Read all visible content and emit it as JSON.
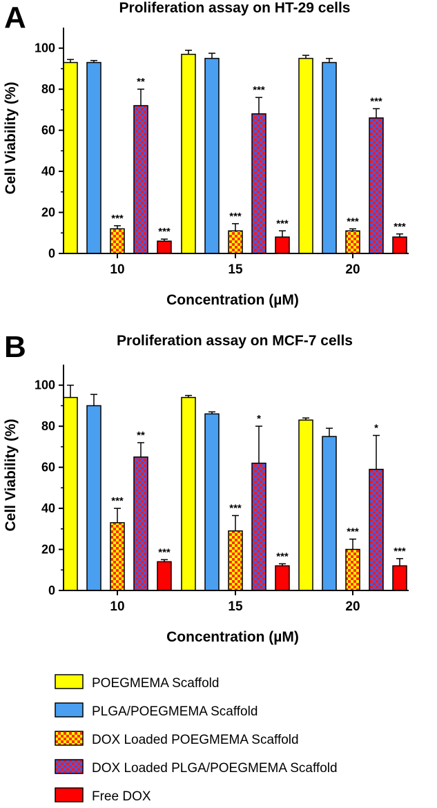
{
  "legend": [
    {
      "label": "POEGMEMA Scaffold",
      "pattern": "solid-yellow"
    },
    {
      "label": "PLGA/POEGMEMA Scaffold",
      "pattern": "solid-blue"
    },
    {
      "label": "DOX Loaded POEGMEMA Scaffold",
      "pattern": "check-red-yellow"
    },
    {
      "label": "DOX Loaded PLGA/POEGMEMA Scaffold",
      "pattern": "check-red-blue"
    },
    {
      "label": "Free DOX",
      "pattern": "solid-red"
    }
  ],
  "colors": {
    "yellow": "#ffff00",
    "blue": "#4a9ff0",
    "red": "#ff0000",
    "checker_blue": "#3a5ef0",
    "axis": "#000000"
  },
  "chart_data": [
    {
      "panel": "A",
      "type": "bar",
      "title": "Proliferation assay on HT-29 cells",
      "xlabel": "Concentration (µM)",
      "ylabel": "Cell Viability (%)",
      "ylim": [
        0,
        110
      ],
      "yticks": [
        0,
        20,
        40,
        60,
        80,
        100
      ],
      "categories": [
        "10",
        "15",
        "20"
      ],
      "series": [
        {
          "name": "POEGMEMA Scaffold",
          "values": [
            93,
            97,
            95
          ],
          "errors": [
            1.5,
            2,
            1.5
          ],
          "sig": [
            "",
            "",
            ""
          ]
        },
        {
          "name": "PLGA/POEGMEMA Scaffold",
          "values": [
            93,
            95,
            93
          ],
          "errors": [
            1,
            2.5,
            2
          ],
          "sig": [
            "",
            "",
            ""
          ]
        },
        {
          "name": "DOX Loaded POEGMEMA Scaffold",
          "values": [
            12,
            11,
            11
          ],
          "errors": [
            1.5,
            3.5,
            1
          ],
          "sig": [
            "***",
            "***",
            "***"
          ]
        },
        {
          "name": "DOX Loaded PLGA/POEGMEMA Scaffold",
          "values": [
            72,
            68,
            66
          ],
          "errors": [
            8,
            8,
            4.5
          ],
          "sig": [
            "**",
            "***",
            "***"
          ]
        },
        {
          "name": "Free DOX",
          "values": [
            6,
            8,
            8
          ],
          "errors": [
            1,
            3,
            1.5
          ],
          "sig": [
            "***",
            "***",
            "***"
          ]
        }
      ]
    },
    {
      "panel": "B",
      "type": "bar",
      "title": "Proliferation assay on MCF-7 cells",
      "xlabel": "Concentration (µM)",
      "ylabel": "Cell Viability (%)",
      "ylim": [
        0,
        110
      ],
      "yticks": [
        0,
        20,
        40,
        60,
        80,
        100
      ],
      "categories": [
        "10",
        "15",
        "20"
      ],
      "series": [
        {
          "name": "POEGMEMA Scaffold",
          "values": [
            94,
            94,
            83
          ],
          "errors": [
            6,
            1,
            1
          ],
          "sig": [
            "",
            "",
            ""
          ]
        },
        {
          "name": "PLGA/POEGMEMA Scaffold",
          "values": [
            90,
            86,
            75
          ],
          "errors": [
            5.5,
            1,
            4
          ],
          "sig": [
            "",
            "",
            ""
          ]
        },
        {
          "name": "DOX Loaded POEGMEMA Scaffold",
          "values": [
            33,
            29,
            20
          ],
          "errors": [
            7,
            7.5,
            5
          ],
          "sig": [
            "***",
            "***",
            "***"
          ]
        },
        {
          "name": "DOX Loaded PLGA/POEGMEMA Scaffold",
          "values": [
            65,
            62,
            59
          ],
          "errors": [
            7,
            18,
            16.5
          ],
          "sig": [
            "**",
            "*",
            "*"
          ]
        },
        {
          "name": "Free DOX",
          "values": [
            14,
            12,
            12
          ],
          "errors": [
            1,
            1,
            3.5
          ],
          "sig": [
            "***",
            "***",
            "***"
          ]
        }
      ]
    }
  ]
}
